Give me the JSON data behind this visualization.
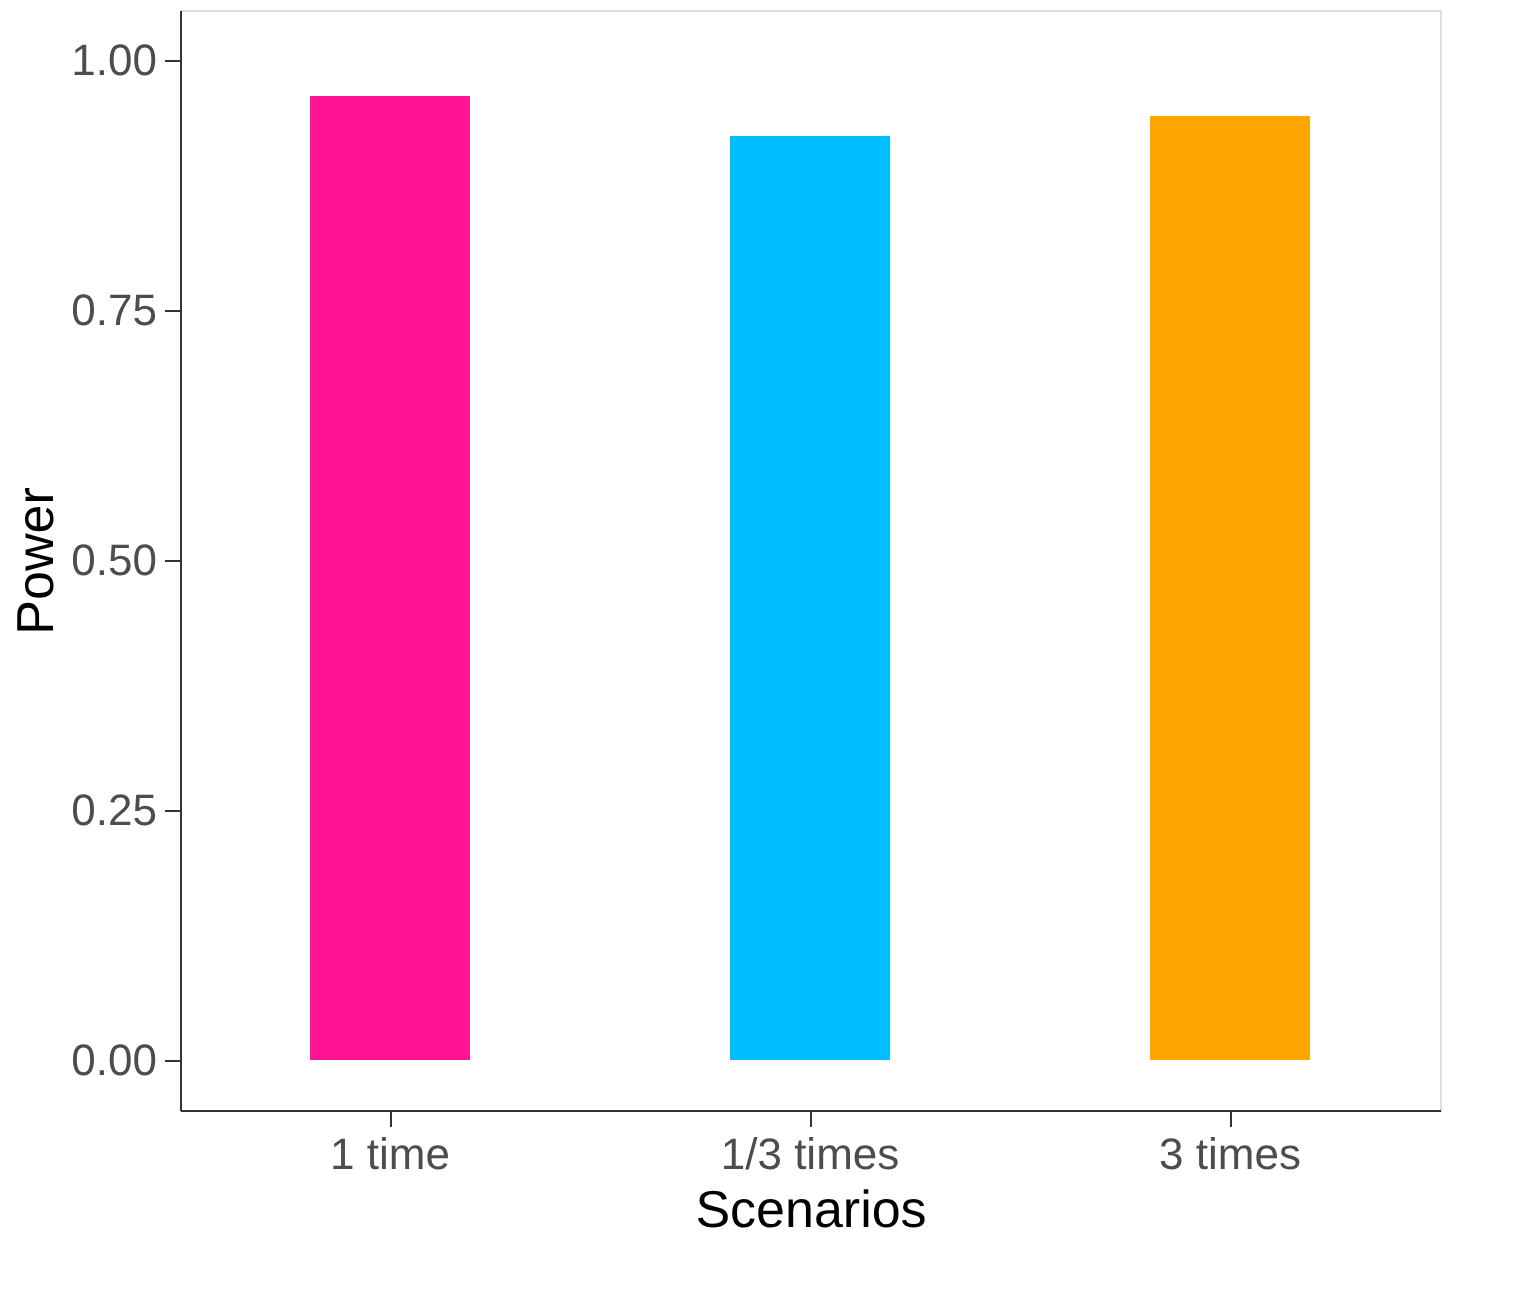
{
  "chart_data": {
    "type": "bar",
    "xlabel": "Scenarios",
    "ylabel": "Power",
    "categories": [
      "1 time",
      "1/3 times",
      "3 times"
    ],
    "values": [
      0.964,
      0.924,
      0.944
    ],
    "colors": [
      "#ff1493",
      "#00bfff",
      "#ffa500"
    ],
    "ylim": [
      -0.05,
      1.05
    ],
    "yticks": [
      {
        "value": 0,
        "label": "0.00"
      },
      {
        "value": 0.25,
        "label": "0.25"
      },
      {
        "value": 0.5,
        "label": "0.50"
      },
      {
        "value": 0.75,
        "label": "0.75"
      },
      {
        "value": 1,
        "label": "1.00"
      }
    ],
    "grid": false,
    "legend": false
  }
}
